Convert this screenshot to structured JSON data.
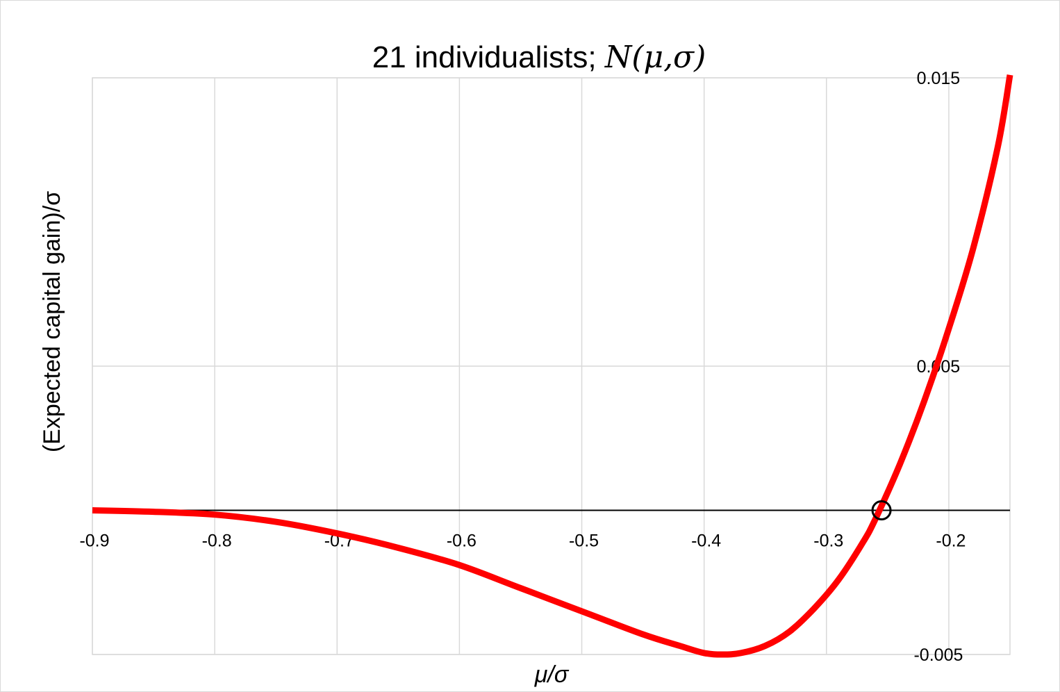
{
  "chart_data": {
    "type": "line",
    "title": {
      "text": "21 individualists; ",
      "math": "N(μ,σ)"
    },
    "xlabel": "μ/σ",
    "ylabel": "(Expected capital gain)/σ",
    "xlim": [
      -0.9,
      -0.15
    ],
    "ylim": [
      -0.005,
      0.015
    ],
    "x_ticks": [
      -0.9,
      -0.8,
      -0.7,
      -0.6,
      -0.5,
      -0.4,
      -0.3,
      -0.2
    ],
    "x_tick_labels": [
      "-0.9",
      "-0.8",
      "-0.7",
      "-0.6",
      "-0.5",
      "-0.4",
      "-0.3",
      "-0.2"
    ],
    "y_ticks": [
      -0.005,
      0.005,
      0.015
    ],
    "y_tick_labels": [
      "-0.005",
      "0.005",
      "0.015"
    ],
    "grid": true,
    "series": [
      {
        "color": "#ff0000",
        "x": [
          -0.9,
          -0.85,
          -0.8,
          -0.75,
          -0.7,
          -0.65,
          -0.6,
          -0.55,
          -0.5,
          -0.45,
          -0.42,
          -0.4,
          -0.385,
          -0.37,
          -0.35,
          -0.33,
          -0.31,
          -0.29,
          -0.27,
          -0.26,
          -0.24,
          -0.22,
          -0.2,
          -0.18,
          -0.16,
          -0.15
        ],
        "y": [
          0.0,
          -5e-05,
          -0.00015,
          -0.0004,
          -0.0008,
          -0.0013,
          -0.0019,
          -0.0027,
          -0.0035,
          -0.0043,
          -0.0047,
          -0.00495,
          -0.005,
          -0.00495,
          -0.0047,
          -0.0042,
          -0.0034,
          -0.0024,
          -0.0011,
          -0.0003,
          0.0016,
          0.0038,
          0.0063,
          0.0091,
          0.0126,
          0.0151
        ]
      }
    ],
    "baseline_y": 0,
    "baseline_color": "#000000",
    "marker": {
      "x": -0.255,
      "y": 0,
      "shape": "circle",
      "color": "#000000"
    }
  }
}
